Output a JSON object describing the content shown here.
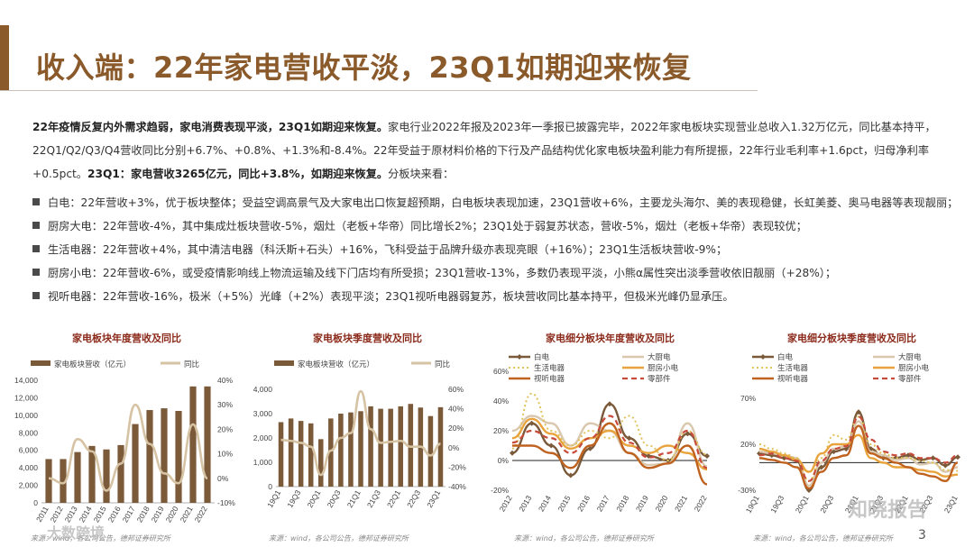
{
  "title": "收入端：22年家电营收平淡，23Q1如期迎来恢复",
  "para": {
    "lead_bold": "22年疫情反复内外需求趋弱，家电消费表现平淡，23Q1如期迎来恢复。",
    "text1": "家电行业2022年报及2023年一季报已披露完毕，2022年家电板块实现营业总收入1.32万亿元，同比基本持平，",
    "line2": "22Q1/Q2/Q3/Q4营收同比分别+6.7%、+0.8%、+1.3%和-8.4%。22年受益于原材料价格的下行及产品结构优化家电板块盈利能力有所提振，22年行业毛利率+1.6pct，归母净利率",
    "line3a": "+0.5pct。",
    "line3_bold": "23Q1：家电营收3265亿元，同比+3.8%，如期迎来恢复。",
    "line3b": "分板块来看："
  },
  "bullets": [
    "白电：22年营收+3%，优于板块整体；受益空调高景气及大家电出口恢复超预期，白电板块表现加速，23Q1营收+6%，主要龙头海尔、美的表现稳健，长虹美菱、奥马电器等表现靓丽；",
    "厨房大电：22年营收-4%，其中集成灶板块营收-5%，烟灶（老板+华帝）同比增长2%；23Q1处于弱复苏状态，营收-5%，烟灶（老板+华帝）表现较优；",
    "生活电器：22年营收+4%，其中清洁电器（科沃斯+石头）+16%，飞科受益于品牌升级亦表现亮眼（+16%）；23Q1生活板块营收-9%；",
    "厨房小电：22年营收-6%，或受疫情影响线上物流运输及线下门店均有所受损；23Q1营收-13%，多数仍表现平淡，小熊α属性突出淡季营收依旧靓丽（+28%）；",
    "视听电器：22年营收-16%，极米（+5%）光峰（+2%）表现平淡；23Q1视听电器弱复苏，板块营收同比基本持平，但极米光峰仍显承压。"
  ],
  "colors": {
    "brown": "#7b5a3a",
    "tan": "#d6c3a4",
    "accent": "#8b5a2b"
  },
  "source": "来源：wind，各公司公告，德邦证券研究所",
  "page_number": "3",
  "watermarks": [
    "大数跨境",
    "知晓报告"
  ],
  "chart_data": [
    {
      "type": "bar",
      "title": "家电板块年度营收及同比",
      "categories": [
        "2011",
        "2012",
        "2013",
        "2014",
        "2015",
        "2016",
        "2017",
        "2018",
        "2019",
        "2020",
        "2021",
        "2022"
      ],
      "series": [
        {
          "name": "家电板块营收（亿元）",
          "values": [
            5000,
            5000,
            5800,
            6500,
            6100,
            6600,
            9000,
            10600,
            10800,
            10500,
            13300,
            13300
          ]
        },
        {
          "name": "同比",
          "values": [
            0,
            -2,
            16,
            11,
            -5,
            6,
            30,
            14,
            2,
            -2,
            22,
            0
          ]
        }
      ],
      "ylim": [
        0,
        14000
      ],
      "y2lim": [
        -10,
        40
      ],
      "yticks": [
        "0",
        "2,000",
        "4,000",
        "6,000",
        "8,000",
        "10,000",
        "12,000",
        "14,000"
      ],
      "y2ticks": [
        "-10%",
        "0%",
        "10%",
        "20%",
        "30%",
        "40%"
      ]
    },
    {
      "type": "bar",
      "title": "家电板块季度营收及同比",
      "categories": [
        "19Q1",
        "19Q2",
        "19Q3",
        "19Q4",
        "20Q1",
        "20Q2",
        "20Q3",
        "20Q4",
        "21Q1",
        "21Q2",
        "21Q3",
        "21Q4",
        "22Q1",
        "22Q2",
        "22Q3",
        "22Q4",
        "23Q1"
      ],
      "x_tick_labels": [
        "19Q1",
        "19Q3",
        "20Q1",
        "20Q3",
        "21Q1",
        "21Q3",
        "22Q1",
        "22Q3",
        "23Q1"
      ],
      "series": [
        {
          "name": "家电板块营收（亿元）",
          "values": [
            2650,
            2800,
            2700,
            2600,
            1950,
            2800,
            3000,
            3050,
            3100,
            3300,
            3200,
            3200,
            3300,
            3400,
            3250,
            2900,
            3265
          ]
        },
        {
          "name": "同比",
          "values": [
            8,
            7,
            5,
            1,
            -28,
            -3,
            10,
            15,
            58,
            19,
            5,
            6,
            7,
            1,
            1,
            -8,
            4
          ]
        }
      ],
      "ylim": [
        0,
        4000
      ],
      "y2lim": [
        -40,
        60
      ],
      "yticks": [
        "0",
        "1,000",
        "2,000",
        "3,000",
        "4,000"
      ],
      "y2ticks": [
        "-40%",
        "-20%",
        "0%",
        "20%",
        "40%",
        "60%"
      ]
    },
    {
      "type": "line",
      "title": "家电细分板块年度营收及同比",
      "x": [
        "2012",
        "2013",
        "2014",
        "2015",
        "2016",
        "2017",
        "2018",
        "2019",
        "2020",
        "2021",
        "2022"
      ],
      "series": [
        {
          "name": "白电",
          "values": [
            5,
            25,
            10,
            -10,
            8,
            38,
            15,
            3,
            0,
            18,
            3
          ]
        },
        {
          "name": "大厨电",
          "values": [
            20,
            30,
            25,
            10,
            25,
            20,
            5,
            -3,
            -2,
            25,
            -4
          ]
        },
        {
          "name": "生活电器",
          "values": [
            8,
            45,
            20,
            10,
            20,
            15,
            30,
            10,
            0,
            20,
            4
          ]
        },
        {
          "name": "厨房小电",
          "values": [
            15,
            28,
            18,
            8,
            15,
            20,
            10,
            5,
            10,
            5,
            -6
          ]
        },
        {
          "name": "视听电器",
          "values": [
            10,
            10,
            5,
            -5,
            10,
            25,
            5,
            -5,
            -2,
            10,
            -16
          ]
        },
        {
          "name": "零部件",
          "values": [
            12,
            20,
            15,
            5,
            15,
            30,
            12,
            2,
            5,
            20,
            -5
          ]
        }
      ],
      "ylim": [
        -20,
        60
      ],
      "yticks": [
        "-20%",
        "0%",
        "20%",
        "40%",
        "60%"
      ]
    },
    {
      "type": "line",
      "title": "家电细分板块季度营收及同比",
      "x": [
        "19Q1",
        "19Q2",
        "19Q3",
        "19Q4",
        "20Q1",
        "20Q2",
        "20Q3",
        "20Q4",
        "21Q1",
        "21Q2",
        "21Q3",
        "21Q4",
        "22Q1",
        "22Q2",
        "22Q3",
        "22Q4",
        "23Q1"
      ],
      "x_tick_labels": [
        "19Q1",
        "19Q3",
        "20Q1",
        "20Q3",
        "21Q1",
        "21Q3",
        "22Q1",
        "22Q3",
        "23Q1"
      ],
      "series": [
        {
          "name": "白电",
          "values": [
            10,
            8,
            5,
            2,
            -30,
            -5,
            12,
            15,
            55,
            15,
            5,
            5,
            8,
            3,
            5,
            -3,
            6
          ]
        },
        {
          "name": "大厨电",
          "values": [
            12,
            10,
            8,
            5,
            -25,
            0,
            15,
            18,
            45,
            12,
            8,
            3,
            5,
            -2,
            0,
            -10,
            -5
          ]
        },
        {
          "name": "生活电器",
          "values": [
            20,
            15,
            10,
            5,
            -20,
            5,
            30,
            25,
            50,
            20,
            10,
            5,
            5,
            2,
            0,
            -8,
            -9
          ]
        },
        {
          "name": "厨房小电",
          "values": [
            15,
            12,
            8,
            3,
            -10,
            10,
            20,
            20,
            30,
            5,
            0,
            -5,
            -5,
            -8,
            -10,
            -15,
            -13
          ]
        },
        {
          "name": "视听电器",
          "values": [
            5,
            3,
            0,
            -5,
            -28,
            -10,
            5,
            8,
            40,
            10,
            5,
            0,
            -5,
            -12,
            -15,
            -20,
            0
          ]
        },
        {
          "name": "零部件",
          "values": [
            8,
            10,
            5,
            2,
            -20,
            2,
            15,
            18,
            50,
            25,
            12,
            8,
            10,
            5,
            5,
            0,
            8
          ]
        }
      ],
      "ylim": [
        -30,
        70
      ],
      "yticks": [
        "-30%",
        "20%",
        "70%"
      ]
    }
  ]
}
